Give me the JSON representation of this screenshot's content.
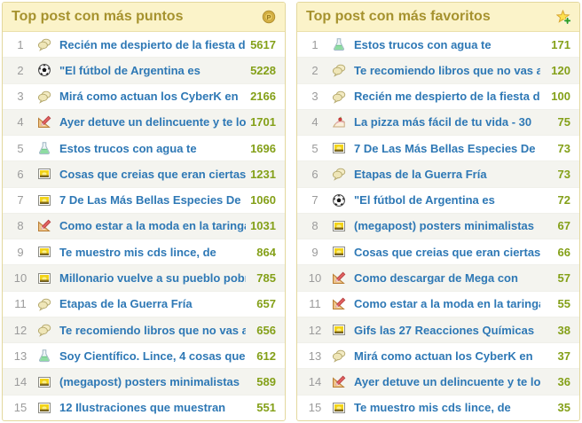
{
  "colors": {
    "header_bg": "#FBF3C9",
    "header_text": "#A6922E",
    "panel_border": "#E3D89E",
    "link_blue": "#2E78B5",
    "value_green": "#84A019",
    "rank_gray": "#9B9B9B",
    "alt_row_bg": "#F4F4EF"
  },
  "panels": [
    {
      "title": "Top post con más puntos",
      "header_icon": "points-coin-icon",
      "rows": [
        {
          "rank": "1",
          "icon": "comments-icon",
          "title": "Recién me despierto de la fiesta de",
          "value": "5617"
        },
        {
          "rank": "2",
          "icon": "soccer-ball-icon",
          "title": "\"El fútbol de Argentina es",
          "value": "5228"
        },
        {
          "rank": "3",
          "icon": "comments-icon",
          "title": "Mirá como actuan los CyberK en",
          "value": "2166"
        },
        {
          "rank": "4",
          "icon": "ruler-pencil-icon",
          "title": "Ayer detuve un delincuente y te lo",
          "value": "1701"
        },
        {
          "rank": "5",
          "icon": "flask-icon",
          "title": "Estos trucos con agua te",
          "value": "1696"
        },
        {
          "rank": "6",
          "icon": "image-icon",
          "title": "Cosas que creias que eran ciertas",
          "value": "1231"
        },
        {
          "rank": "7",
          "icon": "image-icon",
          "title": "7 De Las Más Bellas Especies De",
          "value": "1060"
        },
        {
          "rank": "8",
          "icon": "ruler-pencil-icon",
          "title": "Como estar a la moda en la taringa",
          "value": "1031"
        },
        {
          "rank": "9",
          "icon": "image-icon",
          "title": "Te muestro mis cds lince, de",
          "value": "864"
        },
        {
          "rank": "10",
          "icon": "image-icon",
          "title": "Millonario vuelve a su pueblo pobre",
          "value": "785"
        },
        {
          "rank": "11",
          "icon": "comments-icon",
          "title": "Etapas de la Guerra Fría",
          "value": "657"
        },
        {
          "rank": "12",
          "icon": "comments-icon",
          "title": "Te recomiendo libros que no vas a",
          "value": "656"
        },
        {
          "rank": "13",
          "icon": "flask-icon",
          "title": "Soy Científico. Lince, 4 cosas que",
          "value": "612"
        },
        {
          "rank": "14",
          "icon": "image-icon",
          "title": "(megapost) posters minimalistas",
          "value": "589"
        },
        {
          "rank": "15",
          "icon": "image-icon",
          "title": "12 Ilustraciones que muestran",
          "value": "551"
        }
      ]
    },
    {
      "title": "Top post con más favoritos",
      "header_icon": "add-favorite-star-icon",
      "rows": [
        {
          "rank": "1",
          "icon": "flask-icon",
          "title": "Estos trucos con agua te",
          "value": "171"
        },
        {
          "rank": "2",
          "icon": "comments-icon",
          "title": "Te recomiendo libros que no vas a",
          "value": "120"
        },
        {
          "rank": "3",
          "icon": "comments-icon",
          "title": "Recién me despierto de la fiesta de",
          "value": "100"
        },
        {
          "rank": "4",
          "icon": "cake-icon",
          "title": "La pizza más fácil de tu vida - 30",
          "value": "75"
        },
        {
          "rank": "5",
          "icon": "image-icon",
          "title": "7 De Las Más Bellas Especies De",
          "value": "73"
        },
        {
          "rank": "6",
          "icon": "comments-icon",
          "title": "Etapas de la Guerra Fría",
          "value": "73"
        },
        {
          "rank": "7",
          "icon": "soccer-ball-icon",
          "title": "\"El fútbol de Argentina es",
          "value": "72"
        },
        {
          "rank": "8",
          "icon": "image-icon",
          "title": "(megapost) posters minimalistas",
          "value": "67"
        },
        {
          "rank": "9",
          "icon": "image-icon",
          "title": "Cosas que creias que eran ciertas",
          "value": "66"
        },
        {
          "rank": "10",
          "icon": "ruler-pencil-icon",
          "title": "Como descargar de Mega con",
          "value": "57"
        },
        {
          "rank": "11",
          "icon": "ruler-pencil-icon",
          "title": "Como estar a la moda en la taringa",
          "value": "55"
        },
        {
          "rank": "12",
          "icon": "image-icon",
          "title": "Gifs las 27 Reacciones Químicas",
          "value": "38"
        },
        {
          "rank": "13",
          "icon": "comments-icon",
          "title": "Mirá como actuan los CyberK en",
          "value": "37"
        },
        {
          "rank": "14",
          "icon": "ruler-pencil-icon",
          "title": "Ayer detuve un delincuente y te lo",
          "value": "36"
        },
        {
          "rank": "15",
          "icon": "image-icon",
          "title": "Te muestro mis cds lince, de",
          "value": "35"
        }
      ]
    }
  ]
}
